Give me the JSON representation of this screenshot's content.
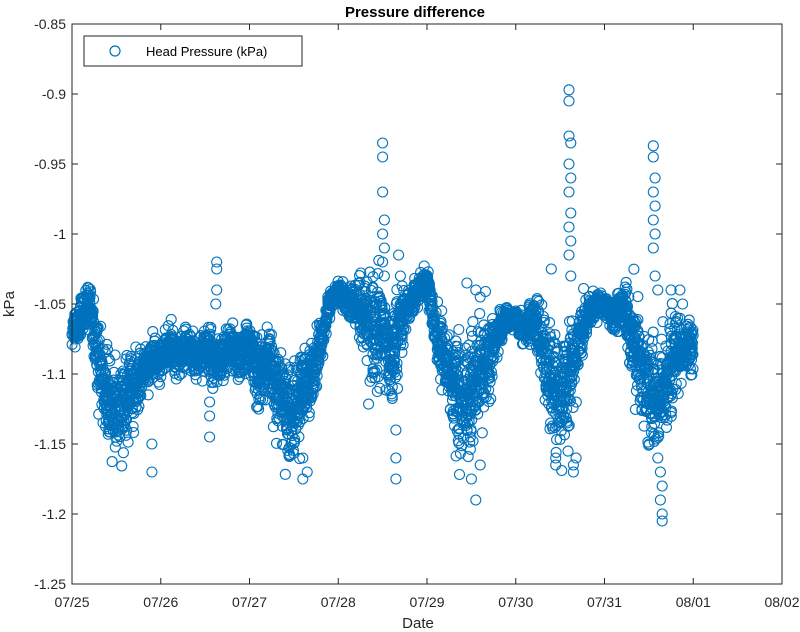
{
  "chart_data": {
    "type": "scatter",
    "title": "Pressure difference",
    "xlabel": "Date",
    "ylabel": "kPa",
    "x_range": [
      "07/25",
      "08/02"
    ],
    "ylim": [
      -1.25,
      -0.85
    ],
    "x_ticks": [
      "07/25",
      "07/26",
      "07/27",
      "07/28",
      "07/29",
      "07/30",
      "07/31",
      "08/01",
      "08/02"
    ],
    "y_ticks": [
      "-0.85",
      "-0.9",
      "-0.95",
      "-1",
      "-1.05",
      "-1.1",
      "-1.15",
      "-1.2",
      "-1.25"
    ],
    "legend": {
      "position": "top-left",
      "box": true
    },
    "grid": false,
    "marker": "circle-open",
    "colors": {
      "series": "#0072BD",
      "axis": "#262626"
    },
    "series": [
      {
        "name": "Head Pressure (kPa)",
        "x_unit": "days after 07/25 00:00",
        "x": [
          0.0,
          0.1,
          0.2,
          0.3,
          0.4,
          0.5,
          0.6,
          0.7,
          0.8,
          0.9,
          1.0,
          1.1,
          1.2,
          1.3,
          1.4,
          1.5,
          1.6,
          1.7,
          1.8,
          1.9,
          2.0,
          2.1,
          2.2,
          2.3,
          2.4,
          2.5,
          2.6,
          2.7,
          2.8,
          2.9,
          3.0,
          3.1,
          3.2,
          3.3,
          3.4,
          3.5,
          3.6,
          3.7,
          3.8,
          3.9,
          4.0,
          4.1,
          4.2,
          4.3,
          4.4,
          4.5,
          4.6,
          4.7,
          4.8,
          4.9,
          5.0,
          5.1,
          5.2,
          5.3,
          5.4,
          5.5,
          5.6,
          5.7,
          5.8,
          5.9,
          6.0,
          6.1,
          6.2,
          6.3,
          6.4,
          6.5,
          6.6,
          6.7,
          6.8,
          6.9,
          7.0
        ],
        "y": [
          -1.07,
          -1.06,
          -1.05,
          -1.09,
          -1.12,
          -1.13,
          -1.12,
          -1.11,
          -1.1,
          -1.09,
          -1.09,
          -1.08,
          -1.09,
          -1.08,
          -1.09,
          -1.08,
          -1.09,
          -1.09,
          -1.08,
          -1.09,
          -1.08,
          -1.1,
          -1.09,
          -1.11,
          -1.12,
          -1.13,
          -1.11,
          -1.1,
          -1.08,
          -1.05,
          -1.04,
          -1.05,
          -1.05,
          -1.06,
          -1.08,
          -1.07,
          -1.09,
          -1.06,
          -1.05,
          -1.04,
          -1.03,
          -1.07,
          -1.09,
          -1.11,
          -1.12,
          -1.11,
          -1.1,
          -1.09,
          -1.07,
          -1.06,
          -1.06,
          -1.07,
          -1.06,
          -1.08,
          -1.11,
          -1.12,
          -1.1,
          -1.08,
          -1.06,
          -1.05,
          -1.05,
          -1.06,
          -1.05,
          -1.07,
          -1.09,
          -1.12,
          -1.12,
          -1.1,
          -1.09,
          -1.08,
          -1.08
        ],
        "spread": [
          0.01,
          0.012,
          0.015,
          0.02,
          0.025,
          0.028,
          0.025,
          0.022,
          0.015,
          0.012,
          0.012,
          0.012,
          0.012,
          0.012,
          0.012,
          0.015,
          0.015,
          0.015,
          0.015,
          0.015,
          0.015,
          0.02,
          0.02,
          0.025,
          0.028,
          0.03,
          0.025,
          0.02,
          0.012,
          0.008,
          0.006,
          0.01,
          0.015,
          0.03,
          0.035,
          0.03,
          0.028,
          0.02,
          0.01,
          0.008,
          0.006,
          0.015,
          0.025,
          0.03,
          0.035,
          0.035,
          0.03,
          0.025,
          0.012,
          0.008,
          0.006,
          0.01,
          0.012,
          0.025,
          0.035,
          0.04,
          0.03,
          0.02,
          0.01,
          0.008,
          0.006,
          0.01,
          0.012,
          0.025,
          0.035,
          0.04,
          0.04,
          0.03,
          0.025,
          0.02,
          0.015
        ],
        "outliers": [
          [
            0.9,
            -1.17
          ],
          [
            0.9,
            -1.15
          ],
          [
            1.55,
            -1.145
          ],
          [
            1.55,
            -1.13
          ],
          [
            1.55,
            -1.12
          ],
          [
            1.63,
            -1.04
          ],
          [
            1.63,
            -1.025
          ],
          [
            1.63,
            -1.02
          ],
          [
            1.62,
            -1.05
          ],
          [
            2.6,
            -1.175
          ],
          [
            2.6,
            -1.16
          ],
          [
            2.65,
            -1.17
          ],
          [
            3.5,
            -0.935
          ],
          [
            3.5,
            -0.945
          ],
          [
            3.5,
            -0.97
          ],
          [
            3.52,
            -0.99
          ],
          [
            3.5,
            -1.0
          ],
          [
            3.52,
            -1.01
          ],
          [
            3.5,
            -1.02
          ],
          [
            3.52,
            -1.03
          ],
          [
            3.65,
            -1.175
          ],
          [
            3.65,
            -1.16
          ],
          [
            3.65,
            -1.14
          ],
          [
            3.68,
            -1.015
          ],
          [
            3.7,
            -1.03
          ],
          [
            4.55,
            -1.19
          ],
          [
            4.5,
            -1.175
          ],
          [
            4.6,
            -1.165
          ],
          [
            4.45,
            -1.035
          ],
          [
            4.55,
            -1.04
          ],
          [
            4.6,
            -1.045
          ],
          [
            5.4,
            -1.025
          ],
          [
            5.45,
            -1.16
          ],
          [
            5.45,
            -1.165
          ],
          [
            5.6,
            -0.897
          ],
          [
            5.6,
            -0.905
          ],
          [
            5.6,
            -0.93
          ],
          [
            5.62,
            -0.935
          ],
          [
            5.6,
            -0.95
          ],
          [
            5.62,
            -0.96
          ],
          [
            5.6,
            -0.97
          ],
          [
            5.62,
            -0.985
          ],
          [
            5.6,
            -0.995
          ],
          [
            5.62,
            -1.005
          ],
          [
            5.6,
            -1.015
          ],
          [
            5.62,
            -1.03
          ],
          [
            5.65,
            -1.165
          ],
          [
            5.65,
            -1.17
          ],
          [
            5.68,
            -1.16
          ],
          [
            6.55,
            -0.937
          ],
          [
            6.55,
            -0.945
          ],
          [
            6.57,
            -0.96
          ],
          [
            6.55,
            -0.97
          ],
          [
            6.57,
            -0.98
          ],
          [
            6.55,
            -0.99
          ],
          [
            6.57,
            -1.0
          ],
          [
            6.55,
            -1.01
          ],
          [
            6.57,
            -1.03
          ],
          [
            6.6,
            -1.04
          ],
          [
            6.65,
            -1.205
          ],
          [
            6.65,
            -1.2
          ],
          [
            6.63,
            -1.19
          ],
          [
            6.65,
            -1.18
          ],
          [
            6.63,
            -1.17
          ],
          [
            6.6,
            -1.16
          ],
          [
            6.75,
            -1.04
          ],
          [
            6.85,
            -1.04
          ],
          [
            6.88,
            -1.05
          ]
        ]
      }
    ]
  }
}
